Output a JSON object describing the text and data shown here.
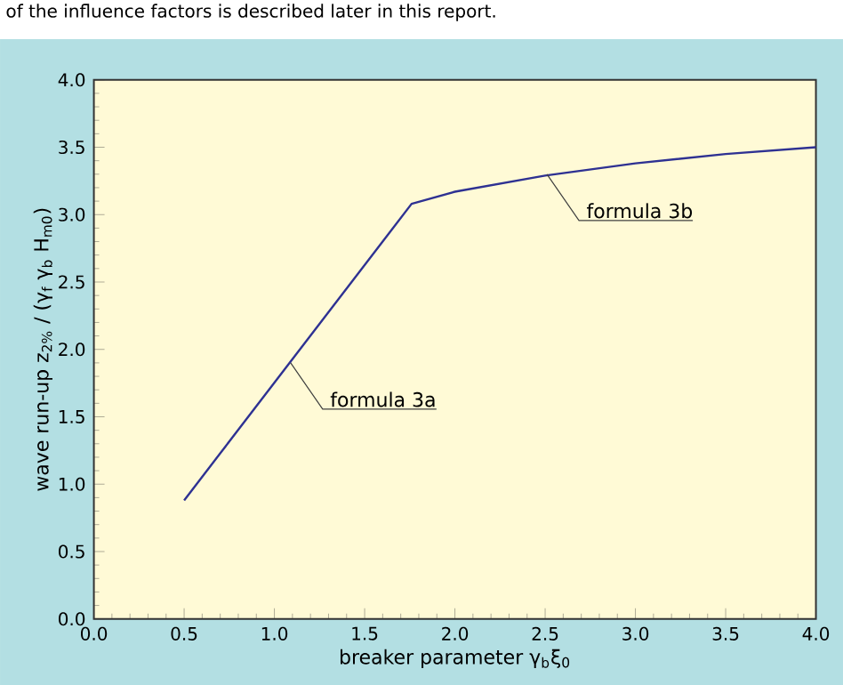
{
  "chart_data": {
    "type": "line",
    "xlabel": "breaker parameter γ$_{b}$ξ$_{0}$",
    "ylabel": "wave run-up z$_{2%}$ / (γ$_{f}$ γ$_{b}$ H$_{m0}$)",
    "x": [
      0.5,
      1.76,
      2.0,
      2.5,
      3.0,
      3.5,
      4.0
    ],
    "series": [
      {
        "color": "#2e3192",
        "values": [
          0.88,
          3.08,
          3.17,
          3.29,
          3.38,
          3.45,
          3.5
        ]
      }
    ],
    "xlim": [
      0,
      4
    ],
    "ylim": [
      0,
      4
    ],
    "xticks": [
      {
        "value": 0,
        "label": "0.0"
      },
      {
        "value": 0.5,
        "label": "0.5"
      },
      {
        "value": 1,
        "label": "1.0"
      },
      {
        "value": 1.5,
        "label": "1.5"
      },
      {
        "value": 2,
        "label": "2.0"
      },
      {
        "value": 2.5,
        "label": "2.5"
      },
      {
        "value": 3,
        "label": "3.0"
      },
      {
        "value": 3.5,
        "label": "3.5"
      },
      {
        "value": 4,
        "label": "4.0"
      }
    ],
    "yticks": [
      {
        "value": 0,
        "label": "0.0"
      },
      {
        "value": 0.5,
        "label": "0.5"
      },
      {
        "value": 1,
        "label": "1.0"
      },
      {
        "value": 1.5,
        "label": "1.5"
      },
      {
        "value": 2,
        "label": "2.0"
      },
      {
        "value": 2.5,
        "label": "2.5"
      },
      {
        "value": 3,
        "label": "3.0"
      },
      {
        "value": 3.5,
        "label": "3.5"
      },
      {
        "value": 4,
        "label": "4.0"
      }
    ],
    "annotations": [
      "of the influence factors is described later in this report.",
      {
        "text": "formula 3a",
        "x": 1.09,
        "y": 1.9
      },
      {
        "text": "formula 3b",
        "x": 2.51,
        "y": 3.3
      }
    ],
    "grid": false,
    "marker": "none",
    "line_style": "solid"
  }
}
